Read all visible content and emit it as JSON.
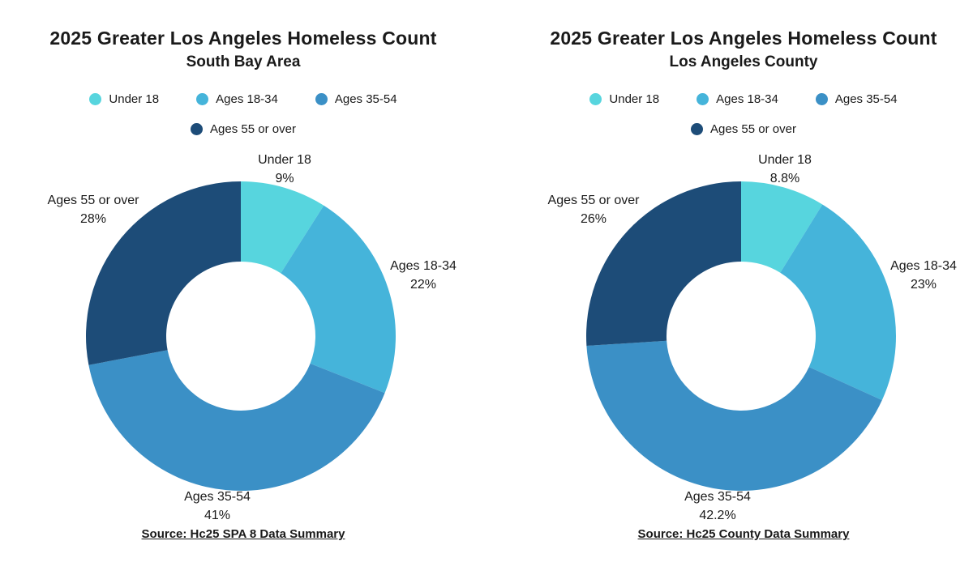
{
  "canvas": {
    "background": "#ffffff",
    "text_color": "#1a1a1a"
  },
  "chart_data": [
    {
      "type": "pie",
      "subtype": "donut",
      "title": "2025 Greater Los Angeles Homeless Count",
      "subtitle": "South Bay Area",
      "categories": [
        "Under 18",
        "Ages 18-34",
        "Ages 35-54",
        "Ages 55 or over"
      ],
      "values": [
        9,
        22,
        41,
        28
      ],
      "labels": [
        "9%",
        "22%",
        "41%",
        "28%"
      ],
      "colors": [
        "#57D5DE",
        "#45B4DA",
        "#3B90C6",
        "#1D4C78"
      ],
      "start_angle_deg": 0,
      "direction": "clockwise",
      "legend_position": "top",
      "source": "Source: Hc25 SPA 8 Data Summary"
    },
    {
      "type": "pie",
      "subtype": "donut",
      "title": "2025 Greater Los Angeles Homeless Count",
      "subtitle": "Los Angeles County",
      "categories": [
        "Under 18",
        "Ages 18-34",
        "Ages 35-54",
        "Ages 55 or over"
      ],
      "values": [
        8.8,
        23,
        42.2,
        26
      ],
      "labels": [
        "8.8%",
        "23%",
        "42.2%",
        "26%"
      ],
      "colors": [
        "#57D5DE",
        "#45B4DA",
        "#3B90C6",
        "#1D4C78"
      ],
      "start_angle_deg": 0,
      "direction": "clockwise",
      "legend_position": "top",
      "source": "Source: Hc25 County Data Summary"
    }
  ]
}
